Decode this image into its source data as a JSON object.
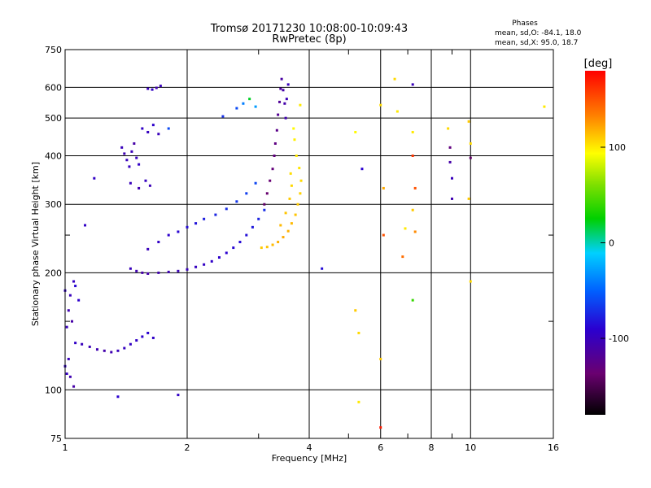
{
  "chart_data": {
    "type": "scatter",
    "title": "Tromsø 20171230 10:08:00-10:09:43",
    "subtitle": "RwPretec (8p)",
    "phase_info": {
      "heading": "Phases",
      "line_o": "mean, sd,O: -84.1, 18.0",
      "line_x": "mean, sd,X:  95.0, 18.7"
    },
    "xlabel": "Frequency [MHz]",
    "ylabel": "Stationary phase Virtual Height [km]",
    "x_scale": "log",
    "y_scale": "log",
    "xlim": [
      1,
      16
    ],
    "ylim": [
      75,
      750
    ],
    "x_ticks": [
      1,
      2,
      4,
      6,
      8,
      10,
      16
    ],
    "x_tick_labels": [
      "1",
      "2",
      "4",
      "6",
      "8",
      "10",
      "16"
    ],
    "x_grid": [
      2,
      4,
      6,
      8,
      10
    ],
    "x_minor_ticks": [
      3,
      5,
      7,
      9
    ],
    "y_ticks": [
      75,
      100,
      200,
      300,
      400,
      500,
      600,
      750
    ],
    "y_tick_labels": [
      "75",
      "100",
      "200",
      "300",
      "400",
      "500",
      "600",
      "750"
    ],
    "y_grid": [
      100,
      200,
      300,
      400,
      500,
      600
    ],
    "y_minor_ticks": [
      150,
      250
    ],
    "grid": true,
    "colorbar": {
      "label": "[deg]",
      "min": -180,
      "max": 180,
      "ticks": [
        100,
        0,
        -100
      ],
      "tick_labels": [
        "100",
        "0",
        "-100"
      ]
    },
    "points": [
      {
        "x": 1.0,
        "y": 180,
        "v": -95
      },
      {
        "x": 1.03,
        "y": 175,
        "v": -100
      },
      {
        "x": 1.05,
        "y": 190,
        "v": -98
      },
      {
        "x": 1.02,
        "y": 160,
        "v": -105
      },
      {
        "x": 1.08,
        "y": 170,
        "v": -92
      },
      {
        "x": 1.04,
        "y": 150,
        "v": -110
      },
      {
        "x": 1.01,
        "y": 145,
        "v": -100
      },
      {
        "x": 1.06,
        "y": 185,
        "v": -88
      },
      {
        "x": 1.02,
        "y": 120,
        "v": -100
      },
      {
        "x": 1.0,
        "y": 115,
        "v": -95
      },
      {
        "x": 1.03,
        "y": 108,
        "v": -105
      },
      {
        "x": 1.05,
        "y": 102,
        "v": -110
      },
      {
        "x": 1.01,
        "y": 110,
        "v": -98
      },
      {
        "x": 1.06,
        "y": 132,
        "v": -95
      },
      {
        "x": 1.1,
        "y": 131,
        "v": -100
      },
      {
        "x": 1.15,
        "y": 129,
        "v": -102
      },
      {
        "x": 1.2,
        "y": 127,
        "v": -105
      },
      {
        "x": 1.25,
        "y": 126,
        "v": -108
      },
      {
        "x": 1.3,
        "y": 125,
        "v": -105
      },
      {
        "x": 1.35,
        "y": 126,
        "v": -100
      },
      {
        "x": 1.4,
        "y": 128,
        "v": -98
      },
      {
        "x": 1.45,
        "y": 131,
        "v": -96
      },
      {
        "x": 1.5,
        "y": 134,
        "v": -95
      },
      {
        "x": 1.55,
        "y": 137,
        "v": -92
      },
      {
        "x": 1.6,
        "y": 140,
        "v": -90
      },
      {
        "x": 1.65,
        "y": 136,
        "v": -94
      },
      {
        "x": 1.38,
        "y": 420,
        "v": -100
      },
      {
        "x": 1.4,
        "y": 405,
        "v": -105
      },
      {
        "x": 1.42,
        "y": 390,
        "v": -100
      },
      {
        "x": 1.44,
        "y": 375,
        "v": -98
      },
      {
        "x": 1.46,
        "y": 410,
        "v": -102
      },
      {
        "x": 1.48,
        "y": 430,
        "v": -110
      },
      {
        "x": 1.5,
        "y": 395,
        "v": -100
      },
      {
        "x": 1.52,
        "y": 380,
        "v": -95
      },
      {
        "x": 1.45,
        "y": 340,
        "v": -100
      },
      {
        "x": 1.52,
        "y": 330,
        "v": -105
      },
      {
        "x": 1.58,
        "y": 345,
        "v": -98
      },
      {
        "x": 1.62,
        "y": 335,
        "v": -102
      },
      {
        "x": 1.55,
        "y": 470,
        "v": -95
      },
      {
        "x": 1.6,
        "y": 460,
        "v": -98
      },
      {
        "x": 1.65,
        "y": 480,
        "v": -92
      },
      {
        "x": 1.7,
        "y": 455,
        "v": -100
      },
      {
        "x": 1.6,
        "y": 595,
        "v": -100
      },
      {
        "x": 1.64,
        "y": 592,
        "v": -95
      },
      {
        "x": 1.68,
        "y": 598,
        "v": -105
      },
      {
        "x": 1.72,
        "y": 605,
        "v": -100
      },
      {
        "x": 1.45,
        "y": 205,
        "v": -100
      },
      {
        "x": 1.5,
        "y": 202,
        "v": -105
      },
      {
        "x": 1.55,
        "y": 200,
        "v": -110
      },
      {
        "x": 1.6,
        "y": 199,
        "v": -108
      },
      {
        "x": 1.7,
        "y": 200,
        "v": -106
      },
      {
        "x": 1.8,
        "y": 201,
        "v": -104
      },
      {
        "x": 1.9,
        "y": 202,
        "v": -102
      },
      {
        "x": 2.0,
        "y": 204,
        "v": -100
      },
      {
        "x": 2.1,
        "y": 207,
        "v": -98
      },
      {
        "x": 2.2,
        "y": 210,
        "v": -96
      },
      {
        "x": 2.3,
        "y": 214,
        "v": -94
      },
      {
        "x": 2.4,
        "y": 219,
        "v": -92
      },
      {
        "x": 2.5,
        "y": 225,
        "v": -90
      },
      {
        "x": 2.6,
        "y": 232,
        "v": -88
      },
      {
        "x": 2.7,
        "y": 240,
        "v": -86
      },
      {
        "x": 2.8,
        "y": 250,
        "v": -84
      },
      {
        "x": 2.9,
        "y": 262,
        "v": -80
      },
      {
        "x": 3.0,
        "y": 275,
        "v": -76
      },
      {
        "x": 3.1,
        "y": 290,
        "v": -72
      },
      {
        "x": 1.6,
        "y": 230,
        "v": -100
      },
      {
        "x": 1.7,
        "y": 240,
        "v": -95
      },
      {
        "x": 1.8,
        "y": 250,
        "v": -92
      },
      {
        "x": 1.9,
        "y": 255,
        "v": -88
      },
      {
        "x": 2.0,
        "y": 262,
        "v": -85
      },
      {
        "x": 2.1,
        "y": 268,
        "v": -82
      },
      {
        "x": 2.2,
        "y": 275,
        "v": -78
      },
      {
        "x": 2.35,
        "y": 282,
        "v": -75
      },
      {
        "x": 2.5,
        "y": 292,
        "v": -72
      },
      {
        "x": 2.65,
        "y": 305,
        "v": -68
      },
      {
        "x": 2.8,
        "y": 320,
        "v": -65
      },
      {
        "x": 2.95,
        "y": 340,
        "v": -62
      },
      {
        "x": 3.1,
        "y": 300,
        "v": -140
      },
      {
        "x": 3.15,
        "y": 320,
        "v": -138
      },
      {
        "x": 3.2,
        "y": 345,
        "v": -135
      },
      {
        "x": 3.25,
        "y": 370,
        "v": -132
      },
      {
        "x": 3.28,
        "y": 400,
        "v": -130
      },
      {
        "x": 3.3,
        "y": 430,
        "v": -128
      },
      {
        "x": 3.33,
        "y": 465,
        "v": -125
      },
      {
        "x": 3.35,
        "y": 510,
        "v": -120
      },
      {
        "x": 3.38,
        "y": 550,
        "v": -118
      },
      {
        "x": 3.4,
        "y": 595,
        "v": -115
      },
      {
        "x": 3.42,
        "y": 630,
        "v": -112
      },
      {
        "x": 3.45,
        "y": 590,
        "v": -110
      },
      {
        "x": 3.48,
        "y": 545,
        "v": -108
      },
      {
        "x": 3.5,
        "y": 500,
        "v": -105
      },
      {
        "x": 3.52,
        "y": 560,
        "v": -102
      },
      {
        "x": 3.55,
        "y": 610,
        "v": -100
      },
      {
        "x": 3.05,
        "y": 232,
        "v": 110
      },
      {
        "x": 3.15,
        "y": 233,
        "v": 112
      },
      {
        "x": 3.25,
        "y": 236,
        "v": 115
      },
      {
        "x": 3.35,
        "y": 240,
        "v": 118
      },
      {
        "x": 3.45,
        "y": 247,
        "v": 120
      },
      {
        "x": 3.55,
        "y": 256,
        "v": 118
      },
      {
        "x": 3.62,
        "y": 268,
        "v": 115
      },
      {
        "x": 3.7,
        "y": 282,
        "v": 112
      },
      {
        "x": 3.75,
        "y": 300,
        "v": 110
      },
      {
        "x": 3.8,
        "y": 320,
        "v": 108
      },
      {
        "x": 3.82,
        "y": 345,
        "v": 105
      },
      {
        "x": 3.78,
        "y": 372,
        "v": 102
      },
      {
        "x": 3.72,
        "y": 400,
        "v": 100
      },
      {
        "x": 3.68,
        "y": 440,
        "v": 98
      },
      {
        "x": 3.66,
        "y": 470,
        "v": 95
      },
      {
        "x": 3.4,
        "y": 265,
        "v": 115
      },
      {
        "x": 3.5,
        "y": 285,
        "v": 112
      },
      {
        "x": 3.58,
        "y": 310,
        "v": 110
      },
      {
        "x": 3.62,
        "y": 335,
        "v": 106
      },
      {
        "x": 3.6,
        "y": 360,
        "v": 104
      },
      {
        "x": 2.65,
        "y": 530,
        "v": -60
      },
      {
        "x": 2.75,
        "y": 545,
        "v": -40
      },
      {
        "x": 2.85,
        "y": 560,
        "v": 20
      },
      {
        "x": 2.95,
        "y": 535,
        "v": -30
      },
      {
        "x": 2.45,
        "y": 505,
        "v": -70
      },
      {
        "x": 5.2,
        "y": 160,
        "v": 110
      },
      {
        "x": 5.3,
        "y": 140,
        "v": 105
      },
      {
        "x": 5.3,
        "y": 93,
        "v": 100
      },
      {
        "x": 5.2,
        "y": 460,
        "v": 95
      },
      {
        "x": 5.4,
        "y": 370,
        "v": -90
      },
      {
        "x": 6.0,
        "y": 80,
        "v": 170
      },
      {
        "x": 6.0,
        "y": 120,
        "v": 110
      },
      {
        "x": 6.0,
        "y": 540,
        "v": 105
      },
      {
        "x": 6.1,
        "y": 250,
        "v": 150
      },
      {
        "x": 6.1,
        "y": 330,
        "v": 120
      },
      {
        "x": 6.5,
        "y": 630,
        "v": 105
      },
      {
        "x": 6.6,
        "y": 520,
        "v": 100
      },
      {
        "x": 6.8,
        "y": 220,
        "v": 140
      },
      {
        "x": 6.9,
        "y": 260,
        "v": 100
      },
      {
        "x": 7.2,
        "y": 610,
        "v": -100
      },
      {
        "x": 7.2,
        "y": 460,
        "v": 100
      },
      {
        "x": 7.2,
        "y": 400,
        "v": 160
      },
      {
        "x": 7.3,
        "y": 330,
        "v": 150
      },
      {
        "x": 7.2,
        "y": 290,
        "v": 110
      },
      {
        "x": 7.3,
        "y": 255,
        "v": 130
      },
      {
        "x": 7.2,
        "y": 170,
        "v": 40
      },
      {
        "x": 8.8,
        "y": 470,
        "v": 105
      },
      {
        "x": 8.9,
        "y": 420,
        "v": -130
      },
      {
        "x": 8.9,
        "y": 385,
        "v": -110
      },
      {
        "x": 9.0,
        "y": 350,
        "v": -100
      },
      {
        "x": 9.0,
        "y": 310,
        "v": -105
      },
      {
        "x": 9.9,
        "y": 490,
        "v": 110
      },
      {
        "x": 10.0,
        "y": 430,
        "v": 105
      },
      {
        "x": 10.0,
        "y": 395,
        "v": -140
      },
      {
        "x": 9.9,
        "y": 310,
        "v": 110
      },
      {
        "x": 10.0,
        "y": 190,
        "v": 105
      },
      {
        "x": 15.2,
        "y": 535,
        "v": 100
      },
      {
        "x": 3.8,
        "y": 540,
        "v": 100
      },
      {
        "x": 4.3,
        "y": 205,
        "v": -85
      },
      {
        "x": 1.8,
        "y": 470,
        "v": -60
      },
      {
        "x": 1.18,
        "y": 350,
        "v": -95
      },
      {
        "x": 1.12,
        "y": 265,
        "v": -95
      },
      {
        "x": 1.9,
        "y": 97,
        "v": -95
      },
      {
        "x": 1.35,
        "y": 96,
        "v": -90
      }
    ]
  }
}
